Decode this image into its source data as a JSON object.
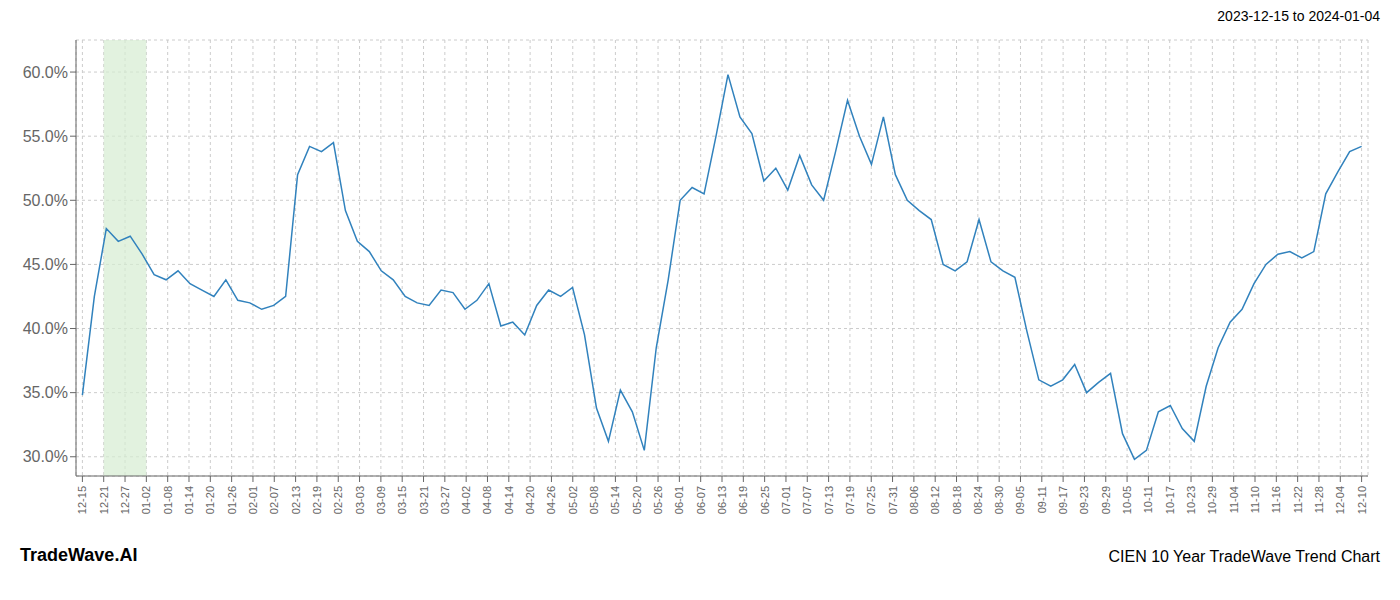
{
  "chart_data": {
    "type": "line",
    "title": "CIEN 10 Year TradeWave Trend Chart",
    "subtitle": "2023-12-15 to 2024-01-04",
    "annotations": [
      "TradeWave.AI"
    ],
    "grid": true,
    "highlight": {
      "range": [
        1,
        3
      ],
      "color": "#d6ecd2"
    },
    "xlim": [
      -0.3,
      60.3
    ],
    "xticks": [
      {
        "value": 0,
        "label": "12-15"
      },
      {
        "value": 1,
        "label": "12-21"
      },
      {
        "value": 2,
        "label": "12-27"
      },
      {
        "value": 3,
        "label": "01-02"
      },
      {
        "value": 4,
        "label": "01-08"
      },
      {
        "value": 5,
        "label": "01-14"
      },
      {
        "value": 6,
        "label": "01-20"
      },
      {
        "value": 7,
        "label": "01-26"
      },
      {
        "value": 8,
        "label": "02-01"
      },
      {
        "value": 9,
        "label": "02-07"
      },
      {
        "value": 10,
        "label": "02-13"
      },
      {
        "value": 11,
        "label": "02-19"
      },
      {
        "value": 12,
        "label": "02-25"
      },
      {
        "value": 13,
        "label": "03-03"
      },
      {
        "value": 14,
        "label": "03-09"
      },
      {
        "value": 15,
        "label": "03-15"
      },
      {
        "value": 16,
        "label": "03-21"
      },
      {
        "value": 17,
        "label": "03-27"
      },
      {
        "value": 18,
        "label": "04-02"
      },
      {
        "value": 19,
        "label": "04-08"
      },
      {
        "value": 20,
        "label": "04-14"
      },
      {
        "value": 21,
        "label": "04-20"
      },
      {
        "value": 22,
        "label": "04-26"
      },
      {
        "value": 23,
        "label": "05-02"
      },
      {
        "value": 24,
        "label": "05-08"
      },
      {
        "value": 25,
        "label": "05-14"
      },
      {
        "value": 26,
        "label": "05-20"
      },
      {
        "value": 27,
        "label": "05-26"
      },
      {
        "value": 28,
        "label": "06-01"
      },
      {
        "value": 29,
        "label": "06-07"
      },
      {
        "value": 30,
        "label": "06-13"
      },
      {
        "value": 31,
        "label": "06-19"
      },
      {
        "value": 32,
        "label": "06-25"
      },
      {
        "value": 33,
        "label": "07-01"
      },
      {
        "value": 34,
        "label": "07-07"
      },
      {
        "value": 35,
        "label": "07-13"
      },
      {
        "value": 36,
        "label": "07-19"
      },
      {
        "value": 37,
        "label": "07-25"
      },
      {
        "value": 38,
        "label": "07-31"
      },
      {
        "value": 39,
        "label": "08-06"
      },
      {
        "value": 40,
        "label": "08-12"
      },
      {
        "value": 41,
        "label": "08-18"
      },
      {
        "value": 42,
        "label": "08-24"
      },
      {
        "value": 43,
        "label": "08-30"
      },
      {
        "value": 44,
        "label": "09-05"
      },
      {
        "value": 45,
        "label": "09-11"
      },
      {
        "value": 46,
        "label": "09-17"
      },
      {
        "value": 47,
        "label": "09-23"
      },
      {
        "value": 48,
        "label": "09-29"
      },
      {
        "value": 49,
        "label": "10-05"
      },
      {
        "value": 50,
        "label": "10-11"
      },
      {
        "value": 51,
        "label": "10-17"
      },
      {
        "value": 52,
        "label": "10-23"
      },
      {
        "value": 53,
        "label": "10-29"
      },
      {
        "value": 54,
        "label": "11-04"
      },
      {
        "value": 55,
        "label": "11-10"
      },
      {
        "value": 56,
        "label": "11-16"
      },
      {
        "value": 57,
        "label": "11-22"
      },
      {
        "value": 58,
        "label": "11-28"
      },
      {
        "value": 59,
        "label": "12-04"
      },
      {
        "value": 60,
        "label": "12-10"
      }
    ],
    "ylim": [
      28.5,
      62.5
    ],
    "yticks": [
      {
        "value": 30.0,
        "label": "30.0%"
      },
      {
        "value": 35.0,
        "label": "35.0%"
      },
      {
        "value": 40.0,
        "label": "40.0%"
      },
      {
        "value": 45.0,
        "label": "45.0%"
      },
      {
        "value": 50.0,
        "label": "50.0%"
      },
      {
        "value": 55.0,
        "label": "55.0%"
      },
      {
        "value": 60.0,
        "label": "60.0%"
      }
    ],
    "x": [
      0,
      0.5607,
      1.1215,
      1.6822,
      2.243,
      2.8037,
      3.3645,
      3.9252,
      4.486,
      5.0467,
      5.6075,
      6.1682,
      6.729,
      7.2897,
      7.8505,
      8.4112,
      8.972,
      9.5327,
      10.0935,
      10.6542,
      11.215,
      11.7757,
      12.3364,
      12.8972,
      13.4579,
      14.0187,
      14.5794,
      15.1402,
      15.7009,
      16.2617,
      16.8224,
      17.3832,
      17.9439,
      18.5047,
      19.0654,
      19.6262,
      20.1869,
      20.7477,
      21.3084,
      21.8692,
      22.4299,
      22.9907,
      23.5514,
      24.1121,
      24.6729,
      25.2336,
      25.7944,
      26.3551,
      26.9159,
      27.4766,
      28.0374,
      28.5981,
      29.1589,
      29.7196,
      30.2804,
      30.8411,
      31.4019,
      31.9626,
      32.5234,
      33.0841,
      33.6449,
      34.2056,
      34.7664,
      35.3271,
      35.8879,
      36.4486,
      37.0093,
      37.5701,
      38.1308,
      38.6916,
      39.2523,
      39.8131,
      40.3738,
      40.9346,
      41.4953,
      42.0561,
      42.6168,
      43.1776,
      43.7383,
      44.2991,
      44.8598,
      45.4206,
      45.9813,
      46.5421,
      47.1028,
      47.6636,
      48.2243,
      48.785,
      49.3458,
      49.9065,
      50.4673,
      51.028,
      51.5888,
      52.1495,
      52.7103,
      53.271,
      53.8318,
      54.3925,
      54.9533,
      55.514,
      56.0748,
      56.6355,
      57.1963,
      57.757,
      58.3178,
      58.8785,
      59.4393,
      60
    ],
    "values": [
      34.8,
      42.5,
      47.8,
      46.8,
      47.2,
      45.8,
      44.2,
      43.8,
      44.5,
      43.5,
      43.0,
      42.5,
      43.8,
      42.2,
      42.0,
      41.5,
      41.8,
      42.5,
      52.0,
      54.2,
      53.8,
      54.5,
      49.2,
      46.8,
      46.0,
      44.5,
      43.8,
      42.5,
      42.0,
      41.8,
      43.0,
      42.8,
      41.5,
      42.2,
      43.5,
      40.2,
      40.5,
      39.5,
      41.8,
      43.0,
      42.5,
      43.2,
      39.5,
      33.8,
      31.2,
      35.2,
      33.5,
      30.5,
      38.5,
      43.8,
      50.0,
      51.0,
      50.5,
      55.0,
      59.8,
      56.5,
      55.2,
      51.5,
      52.5,
      50.8,
      53.5,
      51.2,
      50.0,
      53.8,
      57.8,
      55.0,
      52.8,
      56.5,
      52.0,
      50.0,
      49.2,
      48.5,
      45.0,
      44.5,
      45.2,
      48.5,
      45.2,
      44.5,
      44.0,
      39.8,
      36.0,
      35.5,
      36.0,
      37.2,
      35.0,
      35.8,
      36.5,
      31.8,
      29.8,
      30.5,
      33.5,
      34.0,
      32.2,
      31.2,
      35.5,
      38.5,
      40.5,
      41.5,
      43.5,
      45.0,
      45.8,
      46.0,
      45.5,
      46.0,
      50.5,
      52.2,
      53.8,
      54.2
    ]
  }
}
